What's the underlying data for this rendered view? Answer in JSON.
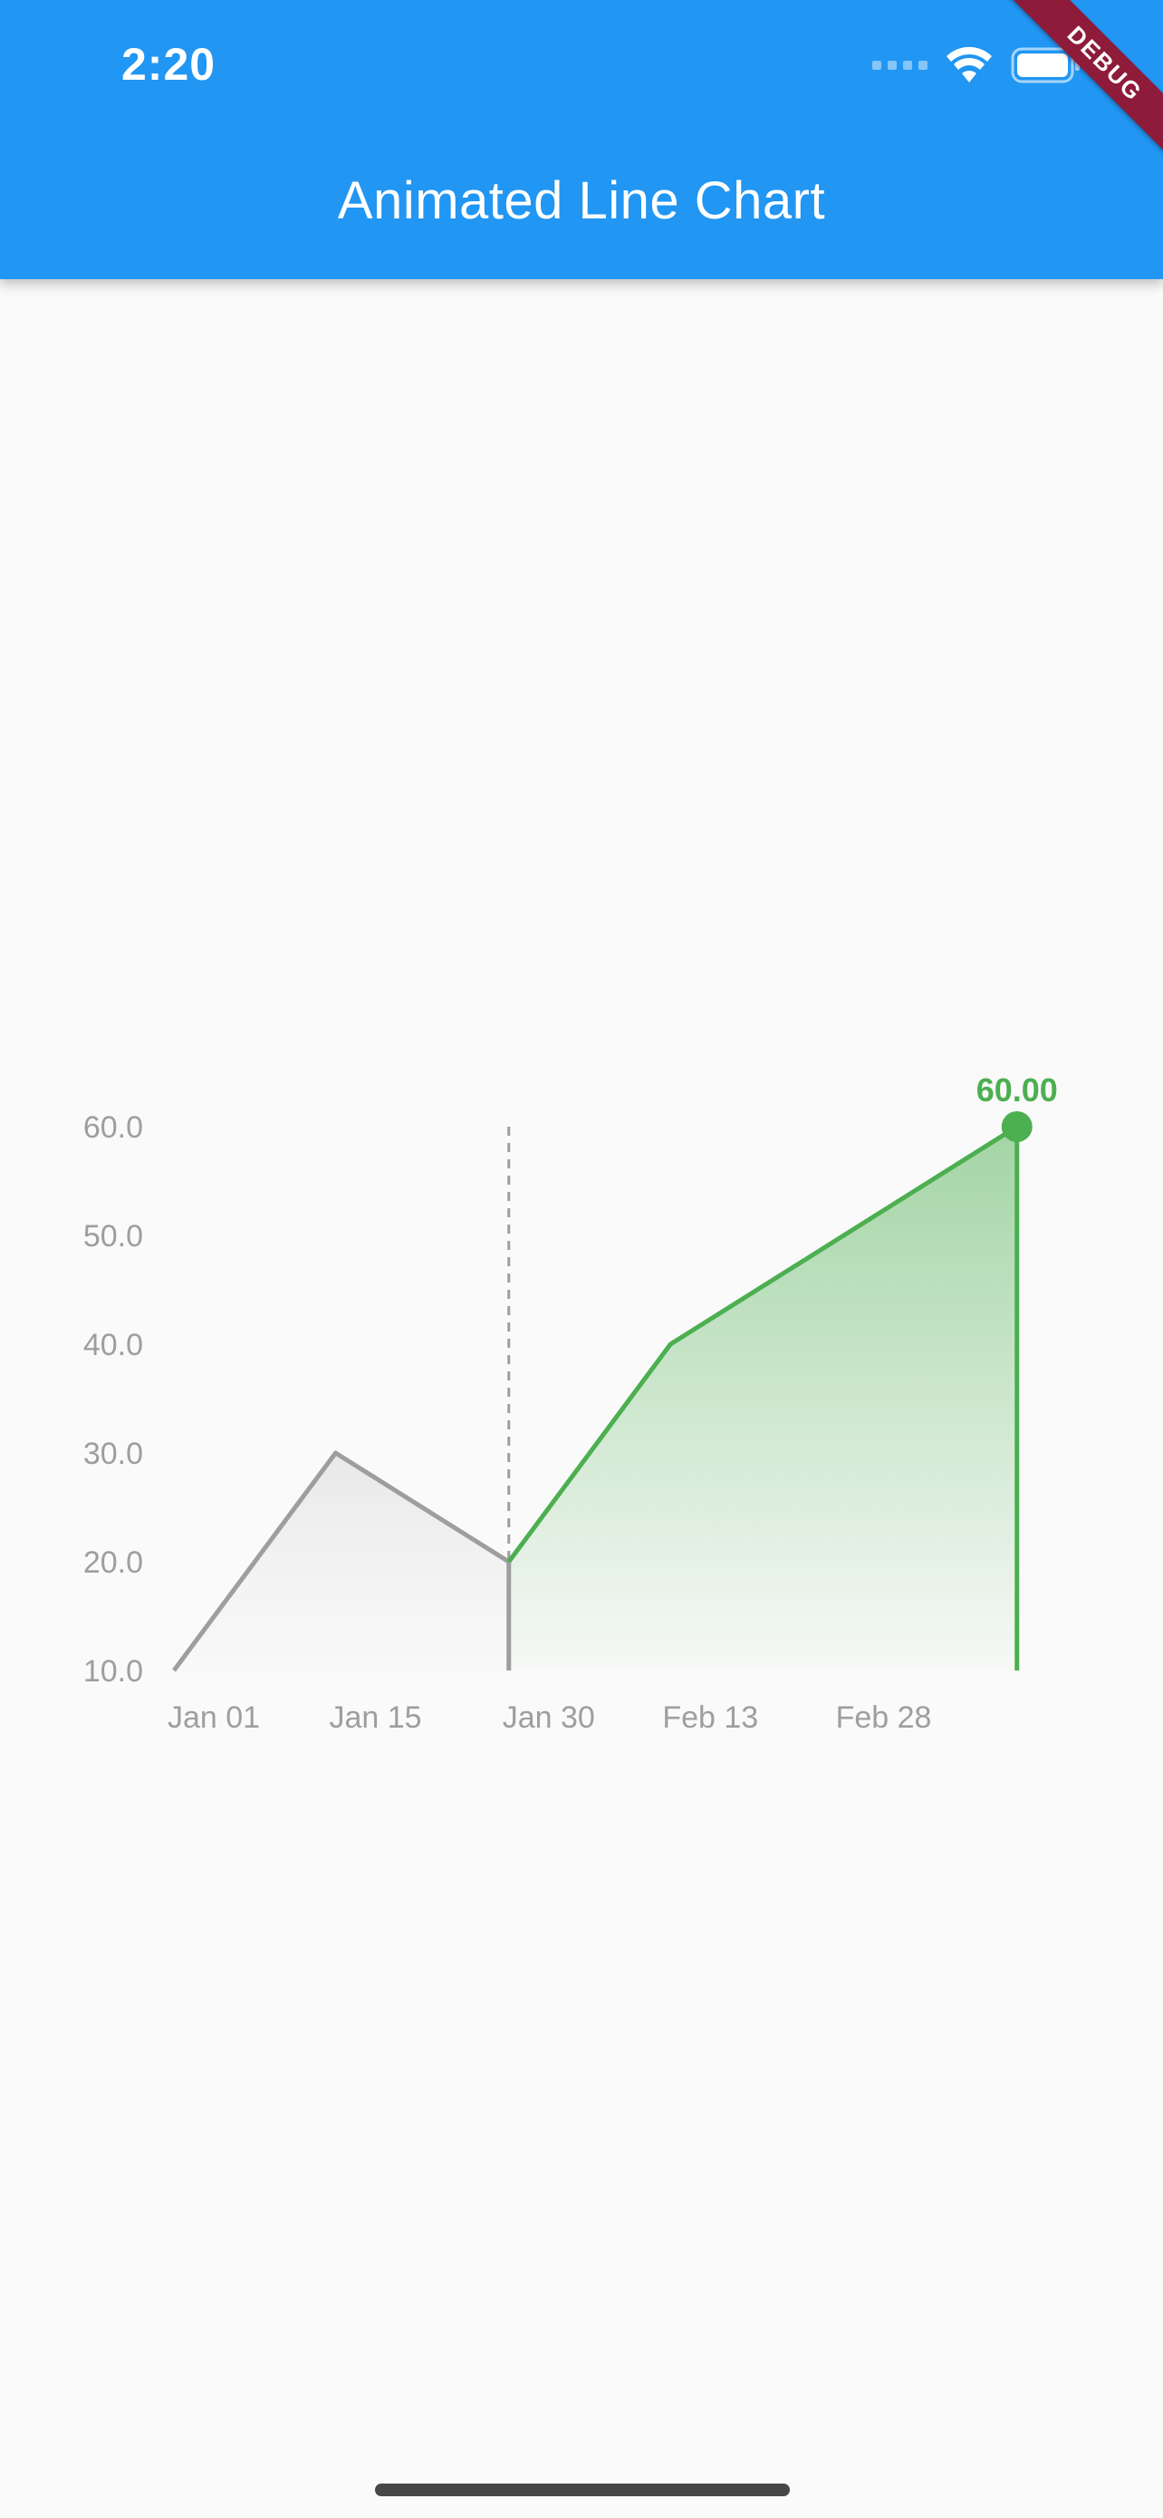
{
  "status_bar": {
    "time": "2:20",
    "icons": [
      "signal-icon",
      "wifi-icon",
      "battery-icon"
    ]
  },
  "app_bar": {
    "title": "Animated Line Chart",
    "color": "#2196F3"
  },
  "debug_banner": {
    "label": "DEBUG",
    "color": "#8E1B3A"
  },
  "colors": {
    "active_line": "#4CAF50",
    "inactive_line": "#9E9E9E",
    "tick_label": "#9E9E9E"
  },
  "chart_data": {
    "type": "line",
    "title": "",
    "xlabel": "",
    "ylabel": "",
    "x_tick_labels": [
      "Jan 01",
      "Jan 15",
      "Jan 30",
      "Feb 13",
      "Feb 28"
    ],
    "y_tick_labels": [
      "60.0",
      "50.0",
      "40.0",
      "30.0",
      "20.0",
      "10.0"
    ],
    "ylim": [
      10,
      60
    ],
    "grid": false,
    "points": [
      {
        "x": "Jan 01",
        "y": 10
      },
      {
        "x": "Jan 15",
        "y": 30
      },
      {
        "x": "Jan 30",
        "y": 20
      },
      {
        "x": "Feb 13",
        "y": 40
      },
      {
        "x": "Mar 14",
        "y": 60
      }
    ],
    "highlight": {
      "start_x": "Jan 30",
      "end_x": "Mar 14",
      "color": "#4CAF50",
      "value_label": "60.00"
    },
    "inactive_color": "#9E9E9E"
  }
}
